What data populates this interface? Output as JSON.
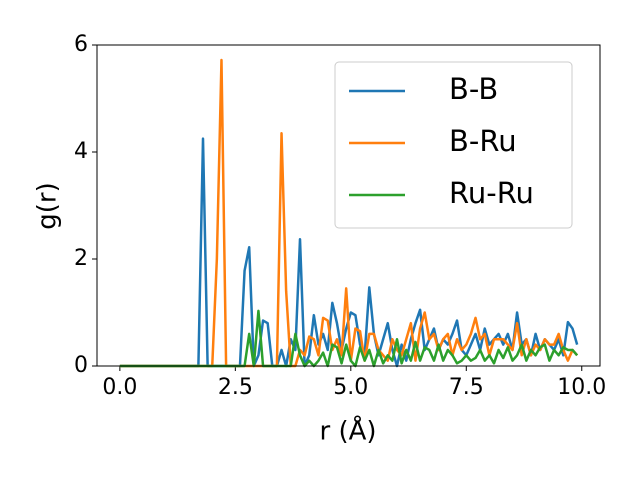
{
  "chart_data": {
    "type": "line",
    "xlabel": "r (Å)",
    "ylabel": "g(r)",
    "x": [
      0,
      0.1,
      0.2,
      0.3,
      0.4,
      0.5,
      0.6,
      0.7,
      0.8,
      0.9,
      1,
      1.1,
      1.2,
      1.3,
      1.4,
      1.5,
      1.6,
      1.7,
      1.8,
      1.9,
      2,
      2.1,
      2.2,
      2.3,
      2.4,
      2.5,
      2.6,
      2.7,
      2.8,
      2.9,
      3,
      3.1,
      3.2,
      3.3,
      3.4,
      3.5,
      3.6,
      3.7,
      3.8,
      3.9,
      4,
      4.1,
      4.2,
      4.3,
      4.4,
      4.5,
      4.6,
      4.7,
      4.8,
      4.9,
      5,
      5.1,
      5.2,
      5.3,
      5.4,
      5.5,
      5.6,
      5.7,
      5.8,
      5.9,
      6,
      6.1,
      6.2,
      6.3,
      6.4,
      6.5,
      6.6,
      6.7,
      6.8,
      6.9,
      7,
      7.1,
      7.2,
      7.3,
      7.4,
      7.5,
      7.6,
      7.7,
      7.8,
      7.9,
      8,
      8.1,
      8.2,
      8.3,
      8.4,
      8.5,
      8.6,
      8.7,
      8.8,
      8.9,
      9,
      9.1,
      9.2,
      9.3,
      9.4,
      9.5,
      9.6,
      9.7,
      9.8,
      9.9
    ],
    "series": [
      {
        "name": "B-B",
        "color": "#1f77b4",
        "values": [
          0,
          0,
          0,
          0,
          0,
          0,
          0,
          0,
          0,
          0,
          0,
          0,
          0,
          0,
          0,
          0,
          0,
          0,
          4.25,
          0,
          0,
          0,
          0,
          0,
          0,
          0,
          0,
          1.78,
          2.22,
          0,
          0.2,
          0.85,
          0.8,
          0,
          0,
          0.3,
          0,
          0.5,
          0.3,
          2.37,
          0,
          0.2,
          0.95,
          0.4,
          0.6,
          0.3,
          1.18,
          0.8,
          0.3,
          0.7,
          1.0,
          0.95,
          0.4,
          0.2,
          1.47,
          0.6,
          0.2,
          0.5,
          0.8,
          0.3,
          0,
          0.4,
          0.1,
          0.5,
          0.8,
          1.05,
          0.3,
          0.5,
          0.7,
          0.3,
          0.5,
          0.4,
          0.6,
          0.85,
          0.3,
          0.2,
          0.4,
          0.6,
          0.3,
          0.7,
          0.4,
          0.5,
          0.6,
          0.4,
          0.6,
          0.3,
          1.0,
          0.4,
          0.5,
          0.2,
          0.6,
          0.3,
          0.5,
          0.4,
          0.3,
          0.5,
          0.2,
          0.82,
          0.7,
          0.4
        ]
      },
      {
        "name": "B-Ru",
        "color": "#ff7f0e",
        "values": [
          0,
          0,
          0,
          0,
          0,
          0,
          0,
          0,
          0,
          0,
          0,
          0,
          0,
          0,
          0,
          0,
          0,
          0,
          0,
          0,
          0,
          2.0,
          5.72,
          0,
          0,
          0,
          0,
          0,
          0,
          0,
          0,
          0,
          0,
          0,
          0,
          4.35,
          1.4,
          0,
          0,
          0.3,
          0.2,
          0.55,
          0.5,
          0.2,
          0.9,
          0.85,
          0.3,
          0.5,
          0.2,
          1.45,
          0.1,
          0.7,
          0.65,
          0.1,
          0.6,
          0.6,
          0.3,
          0.2,
          0.1,
          0.5,
          0.3,
          0.2,
          0.5,
          0.8,
          0.1,
          0.7,
          1.0,
          0.5,
          0.6,
          0.3,
          0.5,
          0.6,
          0.2,
          0.5,
          0.3,
          0.4,
          0.6,
          0.9,
          0.5,
          0.6,
          0.2,
          0.5,
          0.5,
          0.5,
          0.4,
          0.3,
          0.8,
          0.2,
          0.5,
          0.2,
          0.4,
          0.3,
          0.5,
          0.4,
          0.4,
          0.6,
          0.3,
          0.1,
          0.3,
          0.2
        ]
      },
      {
        "name": "Ru-Ru",
        "color": "#2ca02c",
        "values": [
          0,
          0,
          0,
          0,
          0,
          0,
          0,
          0,
          0,
          0,
          0,
          0,
          0,
          0,
          0,
          0,
          0,
          0,
          0,
          0,
          0,
          0,
          0,
          0,
          0,
          0,
          0,
          0,
          0.6,
          0,
          1.03,
          0,
          0,
          0,
          0,
          0,
          0,
          0,
          0.6,
          0.2,
          0,
          0.1,
          0,
          0.1,
          0.25,
          0,
          0.4,
          0.35,
          0.05,
          0.4,
          0.1,
          0,
          0.35,
          0.1,
          0.3,
          0,
          0.3,
          0.05,
          0.2,
          0.1,
          0.5,
          0.05,
          0.3,
          0.1,
          0.45,
          0.1,
          0.35,
          0.3,
          0.1,
          0.4,
          0.1,
          0.3,
          0.2,
          0.05,
          0.1,
          0.2,
          0.1,
          0.15,
          0.3,
          0.1,
          0.2,
          0.05,
          0.3,
          0.15,
          0.35,
          0.1,
          0.2,
          0.4,
          0.1,
          0.3,
          0.2,
          0.35,
          0.4,
          0.1,
          0.3,
          0.2,
          0.35,
          0.3,
          0.3,
          0.2
        ]
      }
    ],
    "xlim": [
      -0.495,
      10.395
    ],
    "ylim": [
      0,
      6
    ],
    "xticks": [
      {
        "value": 0,
        "label": "0.0"
      },
      2.5,
      {
        "value": 5,
        "label": "5.0"
      },
      7.5,
      {
        "value": 10,
        "label": "10.0"
      }
    ],
    "yticks": [
      0,
      2,
      4,
      6
    ],
    "legend": "upper right"
  }
}
